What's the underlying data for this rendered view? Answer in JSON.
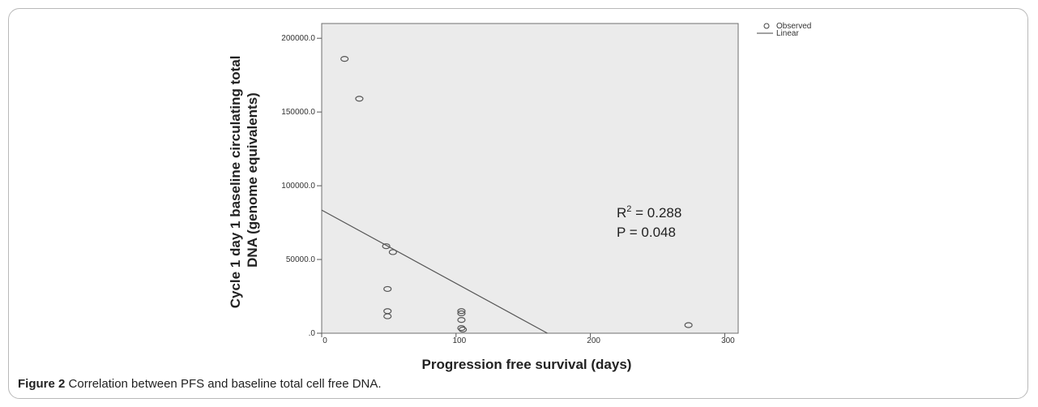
{
  "figure": {
    "label": "Figure 2",
    "caption": " Correlation between PFS and baseline total cell free DNA."
  },
  "chart_data": {
    "type": "scatter",
    "xlabel": "Progression free survival (days)",
    "ylabel_lines": [
      "Cycle 1 day 1 baseline circulating total",
      "DNA (genome equivalents)"
    ],
    "xlim": [
      0,
      310
    ],
    "ylim": [
      0,
      210000
    ],
    "x_ticks": [
      0,
      100,
      200,
      300
    ],
    "x_tick_labels": [
      "0",
      "100",
      "200",
      "300"
    ],
    "y_ticks": [
      0,
      50000,
      100000,
      150000,
      200000
    ],
    "y_tick_labels": [
      ".0",
      "50000.0",
      "100000.0",
      "150000.0",
      "200000.0"
    ],
    "grid": false,
    "plot_background": "#ebebeb",
    "legend": {
      "position": "outside-top-right",
      "entries": [
        "Observed",
        "Linear"
      ]
    },
    "series": [
      {
        "name": "Observed",
        "marker": "open-circle",
        "points": [
          {
            "x": 17,
            "y": 186000
          },
          {
            "x": 28,
            "y": 159000
          },
          {
            "x": 48,
            "y": 59000
          },
          {
            "x": 53,
            "y": 55000
          },
          {
            "x": 49,
            "y": 30000
          },
          {
            "x": 49,
            "y": 15000
          },
          {
            "x": 49,
            "y": 11500
          },
          {
            "x": 104,
            "y": 15000
          },
          {
            "x": 104,
            "y": 13500
          },
          {
            "x": 104,
            "y": 9000
          },
          {
            "x": 104,
            "y": 3500
          },
          {
            "x": 105,
            "y": 2500
          },
          {
            "x": 273,
            "y": 5500
          }
        ]
      },
      {
        "name": "Linear",
        "type": "line",
        "points": [
          {
            "x": 0,
            "y": 83500
          },
          {
            "x": 168,
            "y": 0
          }
        ]
      }
    ],
    "annotations": {
      "r2_prefix": "R",
      "r2_sup": "2",
      "r2_value": " = 0.288",
      "p_text": "P = 0.048"
    }
  }
}
